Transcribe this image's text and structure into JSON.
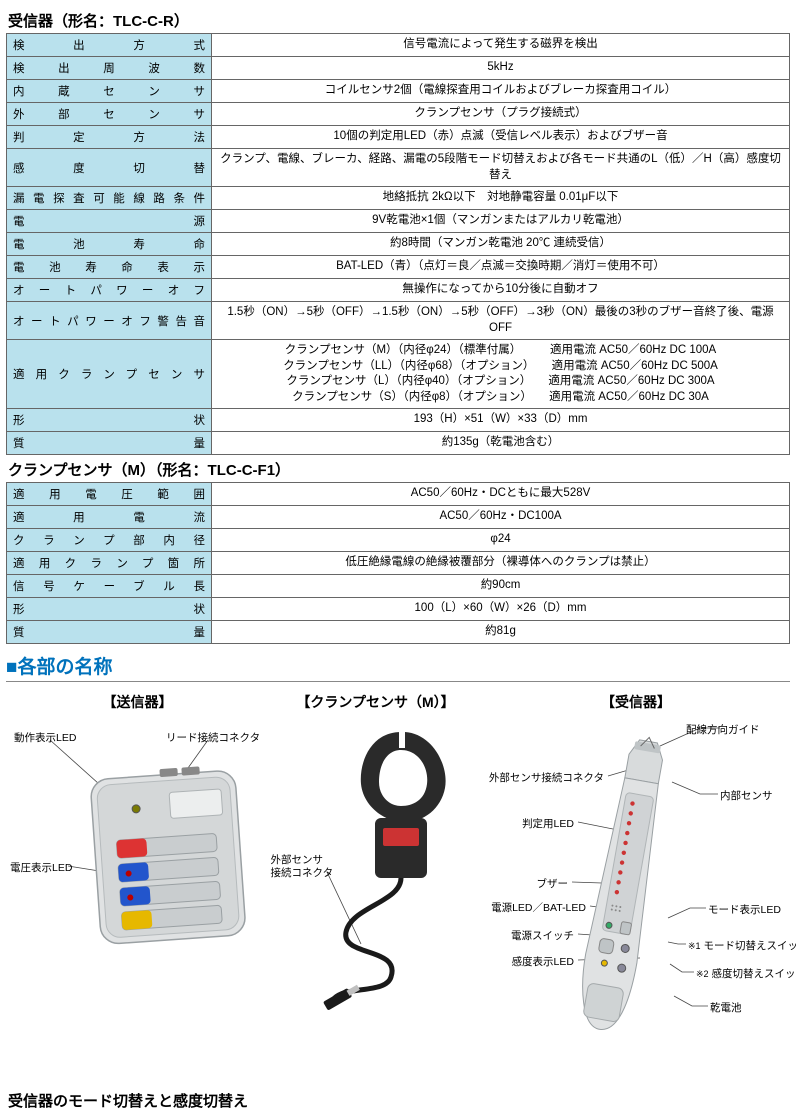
{
  "table1": {
    "title": "受信器（形名：TLC-C-R）",
    "head_bg": "#b9e1ed",
    "rows": [
      {
        "k": "検出方式",
        "v": "信号電流によって発生する磁界を検出"
      },
      {
        "k": "検出周波数",
        "v": "5kHz"
      },
      {
        "k": "内蔵センサ",
        "v": "コイルセンサ2個（電線探査用コイルおよびブレーカ探査用コイル）"
      },
      {
        "k": "外部センサ",
        "v": "クランプセンサ（プラグ接続式）"
      },
      {
        "k": "判定方法",
        "v": "10個の判定用LED（赤）点滅（受信レベル表示）およびブザー音"
      },
      {
        "k": "感度切替",
        "v": "クランプ、電線、ブレーカ、経路、漏電の5段階モード切替えおよび各モード共通のL（低）／H（高）感度切替え"
      },
      {
        "k": "漏電探査可能線路条件",
        "v": "地絡抵抗 2kΩ以下　対地静電容量 0.01μF以下"
      },
      {
        "k": "電源",
        "v": "9V乾電池×1個（マンガンまたはアルカリ乾電池）"
      },
      {
        "k": "電池寿命",
        "v": "約8時間（マンガン乾電池 20℃ 連続受信）"
      },
      {
        "k": "電池寿命表示",
        "v": "BAT-LED（青）（点灯＝良／点滅＝交換時期／消灯＝使用不可）"
      },
      {
        "k": "オートパワーオフ",
        "v": "無操作になってから10分後に自動オフ"
      },
      {
        "k": "オートパワーオフ警告音",
        "v": "1.5秒（ON）→5秒（OFF）→1.5秒（ON）→5秒（OFF）→3秒（ON）最後の3秒のブザー音終了後、電源OFF"
      },
      {
        "k": "適用クランプセンサ",
        "v": "クランプセンサ（M）（内径φ24）（標準付属）　　　適用電流 AC50／60Hz DC 100A\nクランプセンサ（LL）（内径φ68）（オプション）　　適用電流 AC50／60Hz DC 500A\nクランプセンサ（L）（内径φ40）（オプション）　　適用電流 AC50／60Hz DC 300A\nクランプセンサ（S）（内径φ8）（オプション）　　適用電流 AC50／60Hz DC 30A"
      },
      {
        "k": "形状",
        "v": "193（H）×51（W）×33（D）mm"
      },
      {
        "k": "質量",
        "v": "約135g（乾電池含む）"
      }
    ]
  },
  "table2": {
    "title": "クランプセンサ（M）（形名：TLC-C-F1）",
    "rows": [
      {
        "k": "適用電圧範囲",
        "v": "AC50／60Hz・DCともに最大528V"
      },
      {
        "k": "適用電流",
        "v": "AC50／60Hz・DC100A"
      },
      {
        "k": "クランプ部内径",
        "v": "φ24"
      },
      {
        "k": "適用クランプ箇所",
        "v": "低圧絶縁電線の絶縁被覆部分（裸導体へのクランプは禁止）"
      },
      {
        "k": "信号ケーブル長",
        "v": "約90cm"
      },
      {
        "k": "形状",
        "v": "100（L）×60（W）×26（D）mm"
      },
      {
        "k": "質量",
        "v": "約81g"
      }
    ]
  },
  "section_heading": "各部の名称",
  "parts": {
    "col1": {
      "title": "【送信器】",
      "labels": {
        "op_led": "動作表示LED",
        "lead_conn": "リード接続コネクタ",
        "volt_led": "電圧表示LED"
      }
    },
    "col2": {
      "title": "【クランプセンサ（M）】",
      "labels": {
        "ext_conn": "外部センサ\n接続コネクタ"
      }
    },
    "col3": {
      "title": "【受信器】",
      "labels": {
        "wiring_guide": "配線方向ガイド",
        "ext_sensor_conn": "外部センサ接続コネクタ",
        "inner_sensor": "内部センサ",
        "judge_led": "判定用LED",
        "buzzer": "ブザー",
        "power_bat_led": "電源LED／BAT-LED",
        "mode_led": "モード表示LED",
        "power_sw": "電源スイッチ",
        "mode_sw": "モード切替えスイッチ",
        "sens_led": "感度表示LED",
        "sens_sw": "感度切替えスイッチ",
        "battery": "乾電池",
        "note1": "※1",
        "note2": "※2"
      }
    }
  },
  "footer": "受信器のモード切替えと感度切替え",
  "colors": {
    "device_body": "#d8dbdc",
    "device_body_dark": "#bfc4c6",
    "clamp_black": "#2a2a2a",
    "leader": "#444",
    "blue": "#0072bc"
  }
}
